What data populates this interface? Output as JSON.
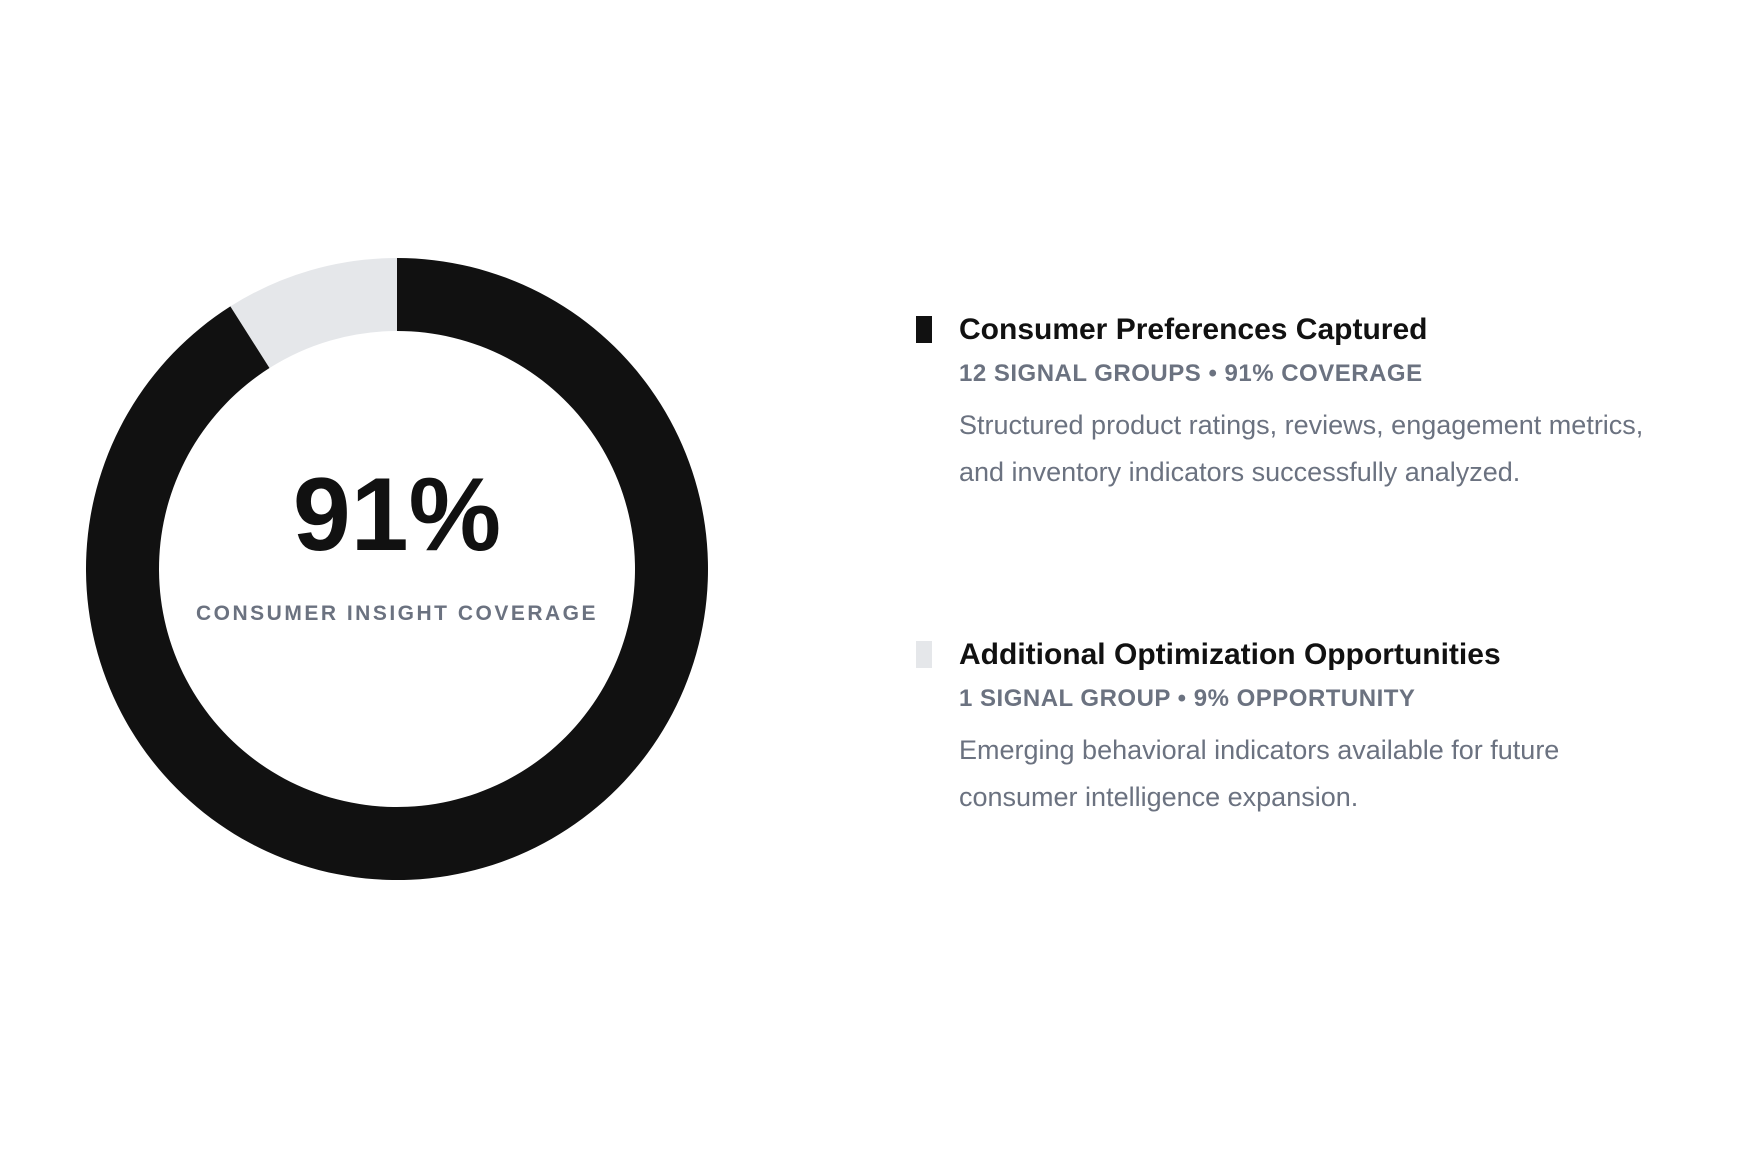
{
  "chart_data": {
    "type": "donut",
    "center_value": "91%",
    "center_label": "CONSUMER INSIGHT COVERAGE",
    "categories": [
      "Consumer Preferences Captured",
      "Additional Optimization Opportunities"
    ],
    "values": [
      91,
      9
    ],
    "colors": [
      "#111111",
      "#e5e7ea"
    ],
    "details": [
      "12 SIGNAL GROUPS • 91% COVERAGE",
      "1 SIGNAL GROUP • 9% OPPORTUNITY"
    ],
    "descriptions": [
      "Structured product ratings, reviews, engagement metrics, and inventory indicators successfully analyzed.",
      "Emerging behavioral indicators available for future consumer intelligence expansion."
    ]
  }
}
